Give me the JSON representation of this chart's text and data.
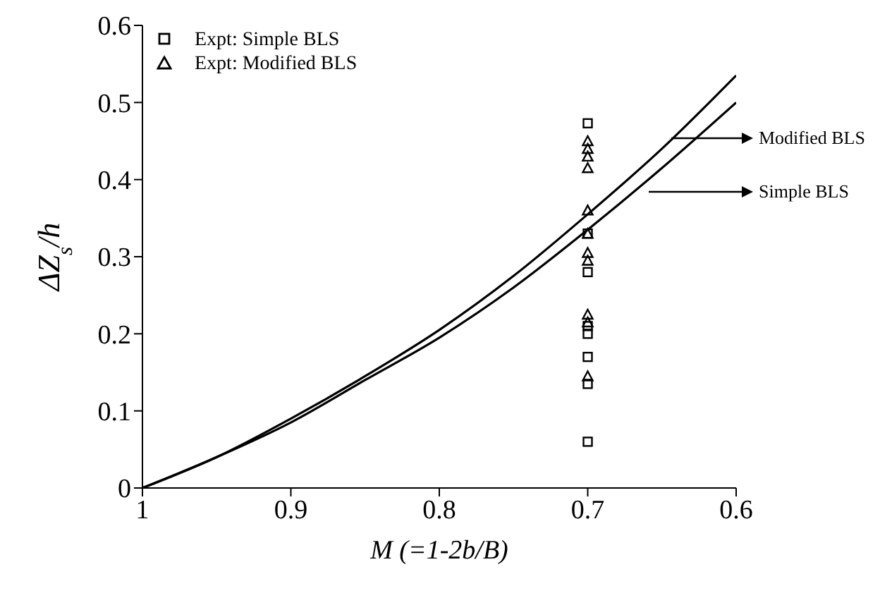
{
  "chart_data": {
    "type": "line",
    "xlabel": "M (=1-2b/B)",
    "ylabel": "ΔZ$_{s}$/h",
    "xlim": [
      1,
      0.6
    ],
    "xticks": [
      1,
      0.9,
      0.8,
      0.7,
      0.6
    ],
    "ylim": [
      0,
      0.6
    ],
    "yticks": [
      0,
      0.1,
      0.2,
      0.3,
      0.4,
      0.5,
      0.6
    ],
    "grid": false,
    "legend": "top left",
    "series": [
      {
        "type": "scatter",
        "name": "Expt: Simple BLS",
        "color": "#000000",
        "marker": "square",
        "x": [
          0.7,
          0.7,
          0.7,
          0.7,
          0.7,
          0.7,
          0.7,
          0.7
        ],
        "values": [
          0.473,
          0.33,
          0.28,
          0.21,
          0.2,
          0.17,
          0.135,
          0.06
        ]
      },
      {
        "type": "scatter",
        "name": "Expt: Modified BLS",
        "color": "#000000",
        "marker": "triangle",
        "x": [
          0.7,
          0.7,
          0.7,
          0.7,
          0.7,
          0.7,
          0.7,
          0.7,
          0.7,
          0.7,
          0.7
        ],
        "values": [
          0.45,
          0.44,
          0.43,
          0.415,
          0.36,
          0.33,
          0.305,
          0.295,
          0.225,
          0.215,
          0.145
        ]
      },
      {
        "type": "line",
        "color": "#000000",
        "x": [
          1,
          0.95,
          0.9,
          0.85,
          0.8,
          0.75,
          0.7,
          0.65,
          0.6
        ],
        "values": [
          0,
          0.04,
          0.09,
          0.145,
          0.205,
          0.275,
          0.355,
          0.44,
          0.535
        ]
      },
      {
        "type": "line",
        "color": "#000000",
        "x": [
          1,
          0.95,
          0.9,
          0.85,
          0.8,
          0.75,
          0.7,
          0.65,
          0.6
        ],
        "values": [
          0,
          0.04,
          0.085,
          0.14,
          0.195,
          0.26,
          0.335,
          0.415,
          0.5
        ]
      }
    ],
    "annotations": [
      "Modified BLS",
      "Simple BLS"
    ]
  }
}
